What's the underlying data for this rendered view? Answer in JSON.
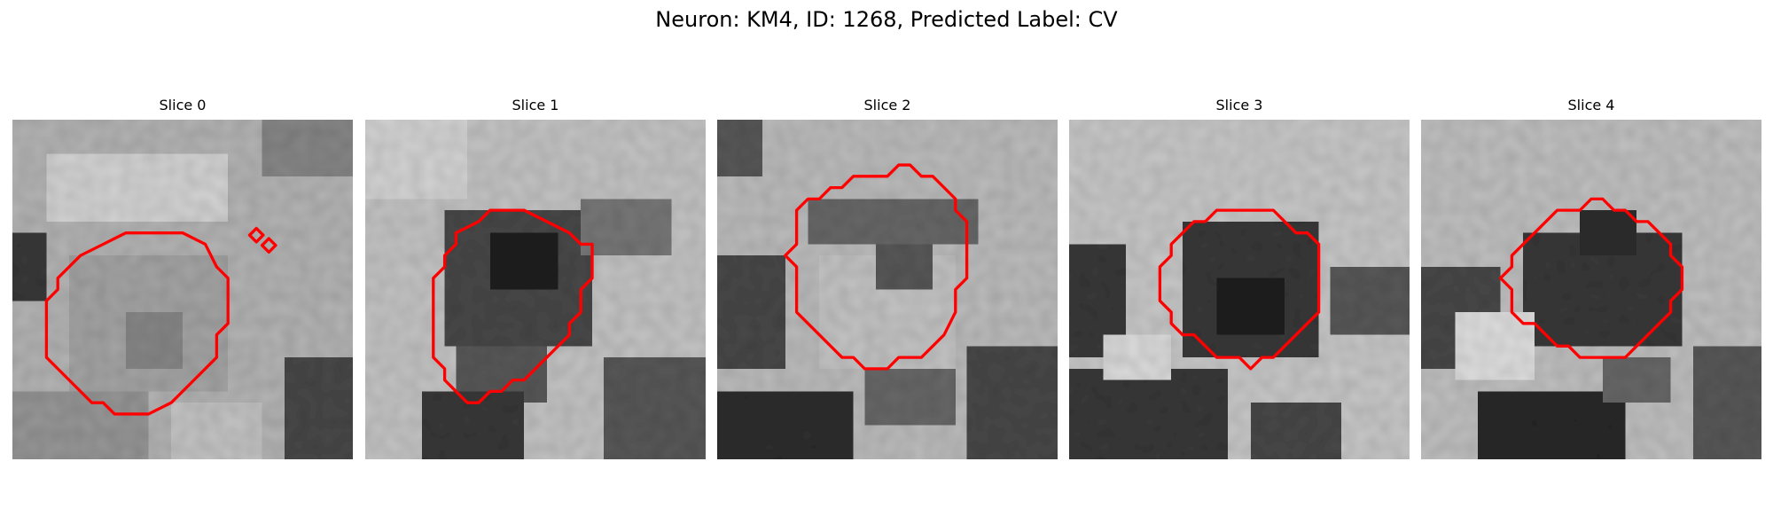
{
  "figure": {
    "title": "Neuron: KM4, ID: 1268, Predicted Label: CV"
  },
  "panels": [
    {
      "title": "Slice 0"
    },
    {
      "title": "Slice 1"
    },
    {
      "title": "Slice 2"
    },
    {
      "title": "Slice 3"
    },
    {
      "title": "Slice 4"
    }
  ],
  "colors": {
    "contour": "#ff0000",
    "background": "#ffffff"
  }
}
